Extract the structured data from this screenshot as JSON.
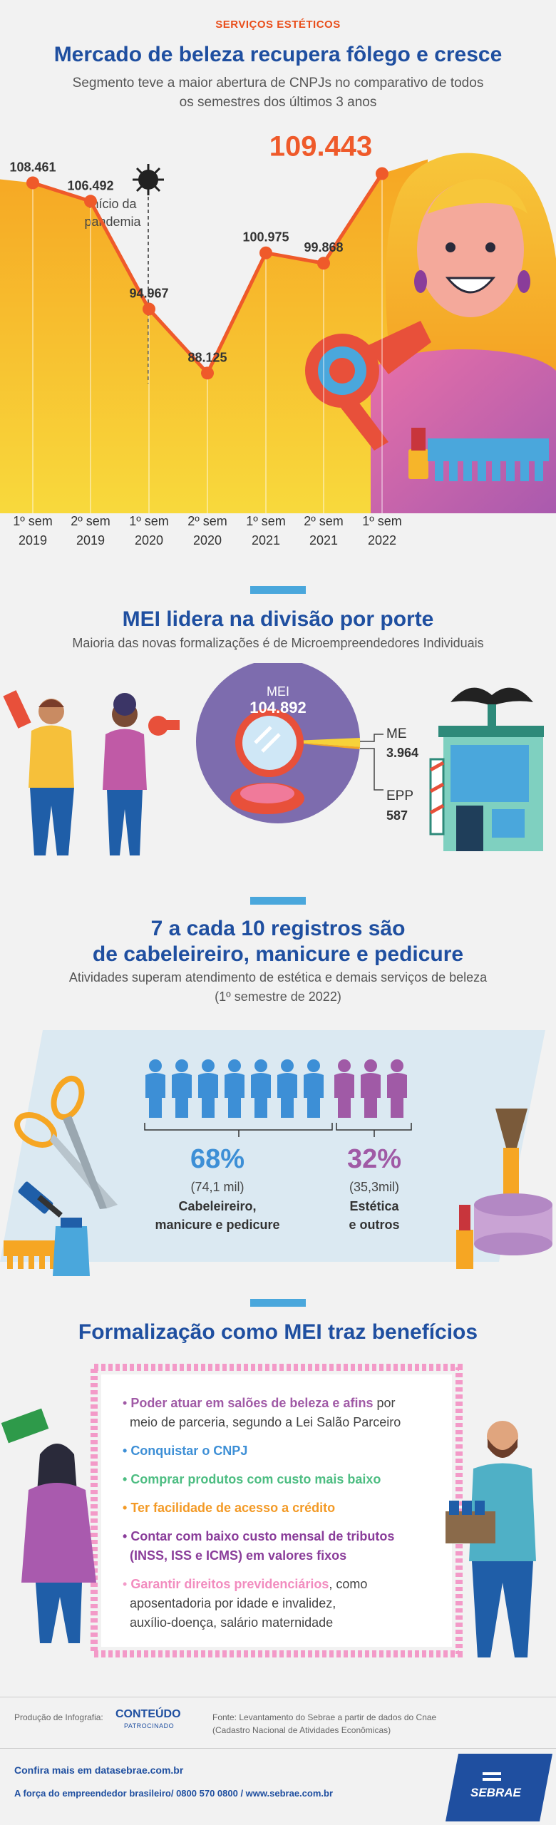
{
  "kicker": "SERVIÇOS ESTÉTICOS",
  "section1": {
    "title": "Mercado de beleza recupera fôlego e cresce",
    "subtitle_line1": "Segmento teve a maior abertura de CNPJs no comparativo de todos",
    "subtitle_line2": "os semestres dos últimos 3 anos",
    "pandemic_label_1": "início da",
    "pandemic_label_2": "pandemia"
  },
  "chart_data": {
    "type": "area",
    "categories": [
      "1º sem 2019",
      "2º sem 2019",
      "1º sem 2020",
      "2º sem 2020",
      "1º sem 2021",
      "2º sem 2021",
      "1º sem 2022"
    ],
    "values": [
      108461,
      106492,
      94967,
      88125,
      100975,
      99868,
      109443
    ],
    "value_labels": [
      "108.461",
      "106.492",
      "94.967",
      "88.125",
      "100.975",
      "99.868",
      "109.443"
    ],
    "axis_line1": [
      "1º sem",
      "2º sem",
      "1º sem",
      "2º sem",
      "1º sem",
      "2º sem",
      "1º sem"
    ],
    "axis_line2": [
      "2019",
      "2019",
      "2020",
      "2020",
      "2021",
      "2021",
      "2022"
    ],
    "colors": {
      "line": "#ef5a2a",
      "area_top": "#f6a623",
      "area_bottom": "#f7d23a",
      "highlight": "#ef5a2a"
    }
  },
  "section2": {
    "title": "MEI lidera na divisão por porte",
    "subtitle": "Maioria das novas formalizações é de Microempreendedores Individuais",
    "mei_label": "MEI",
    "mei_value": "104.892",
    "me_label": "ME",
    "me_value": "3.964",
    "epp_label": "EPP",
    "epp_value": "587"
  },
  "section3": {
    "title_line1": "7 a cada 10 registros são",
    "title_line2": "de cabeleireiro, manicure e pedicure",
    "subtitle_line1": "Atividades superam atendimento de estética e demais serviços de beleza",
    "subtitle_line2": "(1º semestre de 2022)",
    "left_pct": "68%",
    "left_count": "(74,1 mil)",
    "left_label1": "Cabeleireiro,",
    "left_label2": "manicure e pedicure",
    "right_pct": "32%",
    "right_count": "(35,3mil)",
    "right_label1": "Estética",
    "right_label2": "e outros",
    "colors": {
      "blue": "#3d8fd6",
      "purple": "#a05aa6"
    }
  },
  "section4": {
    "title": "Formalização como MEI traz benefícios",
    "b1_bold": "Poder atuar em salões de beleza e afins",
    "b1_rest": " por",
    "b1_line2": "meio de parceria, segundo a Lei Salão Parceiro",
    "b2": "Conquistar o CNPJ",
    "b3": "Comprar produtos com custo mais baixo",
    "b4": "Ter facilidade de acesso a crédito",
    "b5_line1": "Contar com baixo custo mensal de tributos",
    "b5_line2": "(INSS, ISS e ICMS) em valores fixos",
    "b6_bold": "Garantir direitos previdenciários",
    "b6_rest": ", como",
    "b6_line2": "aposentadoria por idade e invalidez,",
    "b6_line3": "auxílio-doença, salário maternidade"
  },
  "footer": {
    "producao": "Produção de Infografia:",
    "conteudo": "CONTEÚDO",
    "patrocinado": "PATROCINADO",
    "fonte_line1": "Fonte: Levantamento do Sebrae a partir de dados do Cnae",
    "fonte_line2": "(Cadastro Nacional de Atividades Econômicas)",
    "confira": "Confira mais em datasebrae.com.br",
    "forca": "A força do empreendedor brasileiro/ 0800 570 0800 / www.sebrae.com.br",
    "sebrae": "SEBRAE"
  }
}
